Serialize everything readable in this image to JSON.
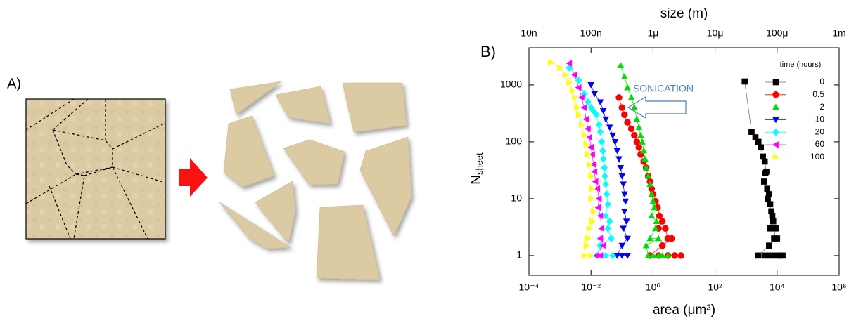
{
  "panel_a": {
    "label": "A)"
  },
  "chart_data": {
    "type": "scatter",
    "panel_label": "B)",
    "x_label": "area (μm²)",
    "x2_label": "size (m)",
    "y_label": "N",
    "y_label_sub": "sheet",
    "annotation": "SONICATION",
    "xlog": true,
    "ylog": true,
    "xlim": [
      0.0001,
      1000000
    ],
    "xticks": [
      {
        "value": 0.0001,
        "label": "10⁻⁴"
      },
      {
        "value": 0.01,
        "label": "10⁻²"
      },
      {
        "value": 1,
        "label": "10⁰"
      },
      {
        "value": 100,
        "label": "10²"
      },
      {
        "value": 10000,
        "label": "10⁴"
      },
      {
        "value": 1000000,
        "label": "10⁶"
      }
    ],
    "x2lim": [
      1e-08,
      0.001
    ],
    "x2ticks": [
      {
        "value": 1e-08,
        "label": "10n"
      },
      {
        "value": 1e-07,
        "label": "100n"
      },
      {
        "value": 1e-06,
        "label": "1μ"
      },
      {
        "value": 1e-05,
        "label": "10μ"
      },
      {
        "value": 0.0001,
        "label": "100μ"
      },
      {
        "value": 0.001,
        "label": "1m"
      }
    ],
    "ylim": [
      0.45,
      4500
    ],
    "yticks": [
      1,
      10,
      100,
      1000
    ],
    "legend_title": "time (hours)",
    "legend": "upper right",
    "series": [
      {
        "name": "0",
        "color": "#000000",
        "marker": "square",
        "x": [
          900,
          1500,
          2000,
          2500,
          3000,
          3500,
          4000,
          4500,
          4200,
          3800,
          4800,
          5500,
          5000,
          6000,
          6500,
          7000,
          7500,
          6000,
          9000,
          8000,
          10000,
          5500,
          2500,
          4000,
          6000,
          9000,
          12000,
          15000
        ],
        "values": [
          1150,
          150,
          120,
          100,
          80,
          55,
          45,
          30,
          28,
          20,
          15,
          12,
          10,
          8,
          6,
          5,
          4,
          3,
          3,
          2,
          2,
          1.5,
          1,
          1,
          1,
          1,
          1,
          1
        ]
      },
      {
        "name": "0.5",
        "color": "#ff0000",
        "marker": "circle",
        "x": [
          0.08,
          0.1,
          0.12,
          0.15,
          0.2,
          0.25,
          0.3,
          0.35,
          0.4,
          0.5,
          0.6,
          0.7,
          0.8,
          0.9,
          1,
          1.2,
          1.4,
          1.6,
          2,
          1.5,
          2.5,
          3,
          4,
          2,
          0.8,
          1.5,
          3,
          5,
          8
        ],
        "values": [
          600,
          400,
          300,
          220,
          170,
          130,
          100,
          80,
          60,
          45,
          35,
          25,
          20,
          15,
          12,
          9,
          7,
          5,
          4,
          3,
          3,
          2,
          2,
          1.5,
          1,
          1,
          1,
          1,
          1
        ]
      },
      {
        "name": "2",
        "color": "#00dd00",
        "marker": "triangle-up",
        "x": [
          0.09,
          0.12,
          0.15,
          0.2,
          0.25,
          0.3,
          0.35,
          0.4,
          0.45,
          0.5,
          0.55,
          0.6,
          0.7,
          0.8,
          0.9,
          1,
          1.1,
          0.9,
          1.3,
          1.2,
          0.8,
          1.5,
          0.6,
          0.7,
          1,
          1.5,
          2,
          3
        ],
        "values": [
          2200,
          1400,
          900,
          600,
          400,
          250,
          180,
          130,
          100,
          70,
          50,
          35,
          25,
          18,
          12,
          9,
          7,
          5,
          4,
          3,
          2,
          2,
          1.5,
          1,
          1,
          1,
          1,
          1
        ]
      },
      {
        "name": "10",
        "color": "#0000ff",
        "marker": "triangle-down",
        "x": [
          0.01,
          0.013,
          0.02,
          0.025,
          0.03,
          0.04,
          0.05,
          0.06,
          0.07,
          0.08,
          0.09,
          0.1,
          0.11,
          0.12,
          0.13,
          0.12,
          0.14,
          0.11,
          0.15,
          0.1,
          0.07,
          0.1,
          0.15
        ],
        "values": [
          1000,
          700,
          500,
          350,
          250,
          180,
          130,
          100,
          70,
          50,
          35,
          25,
          18,
          12,
          9,
          6,
          4,
          3,
          2,
          1.5,
          1,
          1,
          1
        ]
      },
      {
        "name": "20",
        "color": "#00ffff",
        "marker": "diamond",
        "x": [
          0.002,
          0.004,
          0.006,
          0.008,
          0.01,
          0.012,
          0.015,
          0.018,
          0.02,
          0.022,
          0.024,
          0.025,
          0.027,
          0.028,
          0.03,
          0.032,
          0.035,
          0.03,
          0.04,
          0.035,
          0.045,
          0.02,
          0.015,
          0.03,
          0.05
        ],
        "values": [
          2000,
          1200,
          700,
          500,
          400,
          350,
          300,
          200,
          150,
          100,
          70,
          50,
          35,
          25,
          18,
          12,
          8,
          5,
          4,
          3,
          2,
          1.5,
          1,
          1,
          1
        ]
      },
      {
        "name": "60",
        "color": "#ff00ff",
        "marker": "triangle-left",
        "x": [
          0.002,
          0.003,
          0.004,
          0.005,
          0.006,
          0.007,
          0.008,
          0.009,
          0.01,
          0.011,
          0.012,
          0.013,
          0.014,
          0.016,
          0.018,
          0.017,
          0.02,
          0.022,
          0.02,
          0.025,
          0.015,
          0.02
        ],
        "values": [
          2400,
          1500,
          900,
          600,
          400,
          250,
          170,
          120,
          80,
          60,
          40,
          30,
          20,
          15,
          10,
          7,
          5,
          3,
          2,
          1.5,
          1,
          1
        ]
      },
      {
        "name": "100",
        "color": "#ffff00",
        "marker": "triangle-right",
        "x": [
          0.0005,
          0.001,
          0.0015,
          0.002,
          0.0025,
          0.003,
          0.0035,
          0.004,
          0.005,
          0.006,
          0.007,
          0.008,
          0.009,
          0.01,
          0.011,
          0.01,
          0.012,
          0.011,
          0.009,
          0.008,
          0.007,
          0.006,
          0.01
        ],
        "values": [
          2500,
          2000,
          1500,
          1100,
          800,
          600,
          400,
          300,
          200,
          130,
          90,
          60,
          40,
          25,
          15,
          10,
          6,
          4,
          3,
          2,
          1.5,
          1,
          1
        ]
      }
    ]
  }
}
